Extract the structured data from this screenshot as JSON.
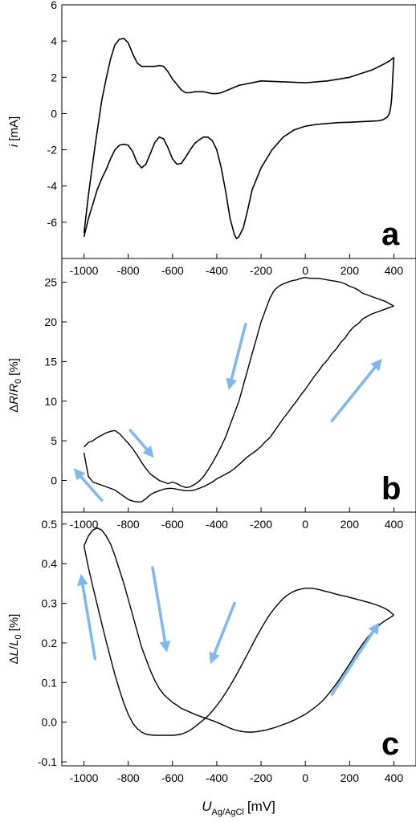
{
  "figure": {
    "xlabel": {
      "main": "U",
      "sub": "Ag/AgCl",
      "unit": "[mV]"
    },
    "arrow_color": "#7db8ee",
    "curve_color": "#000000"
  },
  "chart_data": [
    {
      "type": "line",
      "panel_label": "a",
      "ylabel": {
        "italic": "i",
        "unit": "[mA]"
      },
      "xlim": [
        -1100,
        500
      ],
      "ylim": [
        -8,
        6
      ],
      "xticks": [
        "-1000",
        "-800",
        "-600",
        "-400",
        "-200",
        "0",
        "200",
        "400"
      ],
      "yticks": [
        "6",
        "4",
        "2",
        "0",
        "-2",
        "-4",
        "-6"
      ],
      "grid": false,
      "series": [
        {
          "x": [
            -1000,
            -980,
            -950,
            -920,
            -900,
            -880,
            -860,
            -840,
            -820,
            -800,
            -780,
            -760,
            -740,
            -720,
            -700,
            -680,
            -660,
            -640,
            -620,
            -600,
            -580,
            -560,
            -540,
            -520,
            -500,
            -480,
            -460,
            -440,
            -420,
            -400,
            -380,
            -360,
            -300,
            -200,
            -100,
            0,
            100,
            200,
            300,
            350,
            380,
            400
          ],
          "y": [
            -6.6,
            -4.5,
            -1.8,
            0.7,
            1.9,
            3.0,
            3.8,
            4.1,
            4.15,
            3.9,
            3.3,
            2.8,
            2.6,
            2.6,
            2.6,
            2.6,
            2.65,
            2.6,
            2.3,
            1.9,
            1.6,
            1.3,
            1.15,
            1.15,
            1.2,
            1.2,
            1.2,
            1.15,
            1.1,
            1.1,
            1.15,
            1.25,
            1.55,
            1.8,
            1.75,
            1.7,
            1.8,
            2.0,
            2.4,
            2.7,
            2.9,
            3.1
          ]
        },
        {
          "x": [
            400,
            395,
            390,
            385,
            380,
            370,
            350,
            330,
            300,
            250,
            200,
            150,
            100,
            50,
            0,
            -50,
            -100,
            -150,
            -200,
            -240,
            -260,
            -280,
            -300,
            -310,
            -320,
            -340,
            -360,
            -380,
            -400,
            -420,
            -440,
            -460,
            -480,
            -500,
            -520,
            -540,
            -560,
            -580,
            -600,
            -620,
            -640,
            -660,
            -680,
            -700,
            -720,
            -740,
            -760,
            -780,
            -800,
            -820,
            -840,
            -860,
            -880,
            -900,
            -920,
            -940,
            -960,
            -980,
            -1000
          ],
          "y": [
            3.1,
            2.0,
            0.8,
            0.3,
            0.0,
            -0.2,
            -0.35,
            -0.4,
            -0.42,
            -0.45,
            -0.48,
            -0.5,
            -0.55,
            -0.6,
            -0.7,
            -0.9,
            -1.3,
            -2.0,
            -3.0,
            -4.2,
            -5.3,
            -6.3,
            -6.8,
            -6.9,
            -6.7,
            -5.8,
            -4.3,
            -3.0,
            -2.0,
            -1.5,
            -1.3,
            -1.3,
            -1.45,
            -1.65,
            -2.0,
            -2.4,
            -2.75,
            -2.8,
            -2.5,
            -1.9,
            -1.4,
            -1.3,
            -1.6,
            -2.2,
            -2.8,
            -3.0,
            -2.7,
            -2.1,
            -1.75,
            -1.7,
            -1.75,
            -2.0,
            -2.5,
            -3.1,
            -3.6,
            -4.2,
            -5.0,
            -5.8,
            -6.8
          ]
        }
      ]
    },
    {
      "type": "line",
      "panel_label": "b",
      "ylabel": {
        "prefix": "Δ",
        "italic": "R",
        "slash": "/",
        "italic2": "R",
        "sub": "0",
        "unit": "[%]"
      },
      "xlim": [
        -1100,
        500
      ],
      "ylim": [
        -4,
        28
      ],
      "xticks": [
        "-1000",
        "-800",
        "-600",
        "-400",
        "-200",
        "0",
        "200",
        "400"
      ],
      "yticks": [
        "25",
        "20",
        "15",
        "10",
        "5",
        "0"
      ],
      "grid": false,
      "series": [
        {
          "x": [
            -1000,
            -990,
            -980,
            -960,
            -940,
            -920,
            -900,
            -880,
            -860,
            -840,
            -820,
            -800,
            -780,
            -760,
            -740,
            -720,
            -700,
            -680,
            -660,
            -640,
            -620,
            -600,
            -580,
            -560,
            -540,
            -520,
            -500,
            -480,
            -460,
            -440,
            -420,
            -400,
            -380,
            -360,
            -340,
            -320,
            -300,
            -280,
            -260,
            -240,
            -220,
            -200,
            -180,
            -160,
            -140,
            -120,
            -100,
            -80,
            -60,
            -40,
            -20,
            0,
            20,
            40,
            60,
            80,
            100,
            120,
            140,
            160,
            180,
            200,
            220,
            240,
            260,
            280,
            300,
            320,
            340,
            360,
            380,
            400
          ],
          "y": [
            3.5,
            2.0,
            0.5,
            -0.2,
            -0.4,
            -0.6,
            -0.8,
            -1.0,
            -1.2,
            -1.6,
            -2.0,
            -2.4,
            -2.6,
            -2.7,
            -2.7,
            -2.3,
            -1.8,
            -1.5,
            -1.3,
            -1.1,
            -1.0,
            -1.0,
            -1.1,
            -1.2,
            -1.3,
            -1.3,
            -1.2,
            -1.0,
            -0.8,
            -0.5,
            -0.2,
            0.2,
            0.5,
            0.8,
            1.1,
            1.5,
            2.0,
            2.5,
            3.0,
            3.4,
            3.8,
            4.3,
            4.9,
            5.4,
            6.2,
            7.0,
            7.8,
            8.5,
            9.3,
            10.0,
            10.8,
            11.5,
            12.3,
            13.1,
            13.8,
            14.6,
            15.2,
            16.0,
            16.6,
            17.4,
            18.0,
            18.8,
            19.4,
            19.8,
            20.4,
            20.7,
            21.0,
            21.2,
            21.4,
            21.6,
            21.8,
            22.0
          ]
        },
        {
          "x": [
            400,
            380,
            360,
            340,
            320,
            300,
            280,
            260,
            240,
            220,
            200,
            180,
            160,
            140,
            120,
            100,
            80,
            60,
            40,
            20,
            0,
            -20,
            -40,
            -60,
            -80,
            -100,
            -120,
            -140,
            -160,
            -180,
            -200,
            -220,
            -240,
            -260,
            -280,
            -300,
            -320,
            -340,
            -360,
            -380,
            -400,
            -420,
            -440,
            -460,
            -480,
            -500,
            -520,
            -540,
            -560,
            -580,
            -600,
            -620,
            -640,
            -660,
            -680,
            -700,
            -720,
            -740,
            -760,
            -780,
            -800,
            -820,
            -840,
            -860,
            -880,
            -900,
            -920,
            -940,
            -960,
            -980,
            -990,
            -1000
          ],
          "y": [
            22.0,
            22.3,
            22.6,
            22.8,
            23.0,
            23.2,
            23.4,
            23.6,
            24.0,
            24.3,
            24.5,
            24.8,
            25.0,
            25.1,
            25.2,
            25.3,
            25.4,
            25.5,
            25.5,
            25.5,
            25.6,
            25.5,
            25.3,
            25.2,
            25.0,
            24.8,
            24.5,
            24.0,
            23.0,
            21.5,
            20.0,
            18.0,
            16.0,
            14.0,
            12.0,
            10.0,
            8.5,
            7.0,
            5.5,
            4.3,
            3.2,
            2.2,
            1.3,
            0.5,
            -0.1,
            -0.5,
            -0.8,
            -0.9,
            -0.7,
            -0.4,
            -0.2,
            -0.4,
            -0.2,
            0.0,
            0.4,
            0.8,
            1.5,
            2.3,
            3.2,
            4.0,
            4.7,
            5.3,
            5.9,
            6.3,
            6.2,
            6.0,
            5.7,
            5.4,
            5.0,
            4.8,
            4.5,
            4.2
          ]
        }
      ],
      "arrows": [
        {
          "from": [
            -270,
            19.7
          ],
          "to": [
            -340,
            12.1
          ]
        },
        {
          "from": [
            120,
            7.5
          ],
          "to": [
            330,
            14.8
          ]
        },
        {
          "from": [
            -790,
            6.3
          ],
          "to": [
            -700,
            3.4
          ]
        },
        {
          "from": [
            -920,
            -2.5
          ],
          "to": [
            -1030,
            1.0
          ]
        }
      ]
    },
    {
      "type": "line",
      "panel_label": "c",
      "ylabel": {
        "prefix": "Δ",
        "italic": "L",
        "slash": "/",
        "italic2": "L",
        "sub": "0",
        "unit": "[%]"
      },
      "xlim": [
        -1100,
        500
      ],
      "ylim": [
        -0.11,
        0.53
      ],
      "xticks": [
        "-1000",
        "-800",
        "-600",
        "-400",
        "-200",
        "0",
        "200",
        "400"
      ],
      "yticks": [
        "0.5",
        "0.4",
        "0.3",
        "0.2",
        "0.1",
        "0.0",
        "-0.1"
      ],
      "grid": false,
      "series": [
        {
          "x": [
            -1000,
            -980,
            -960,
            -940,
            -920,
            -900,
            -880,
            -860,
            -840,
            -820,
            -800,
            -780,
            -760,
            -740,
            -720,
            -700,
            -680,
            -660,
            -640,
            -620,
            -600,
            -580,
            -560,
            -540,
            -520,
            -500,
            -480,
            -460,
            -440,
            -420,
            -400,
            -380,
            -360,
            -340,
            -320,
            -300,
            -280,
            -260,
            -240,
            -220,
            -200,
            -180,
            -160,
            -140,
            -120,
            -100,
            -80,
            -60,
            -40,
            -20,
            0,
            20,
            40,
            60,
            80,
            100,
            120,
            140,
            160,
            180,
            200,
            220,
            240,
            260,
            280,
            300,
            320,
            340,
            360,
            380,
            400
          ],
          "y": [
            0.445,
            0.47,
            0.485,
            0.49,
            0.485,
            0.47,
            0.45,
            0.42,
            0.385,
            0.35,
            0.31,
            0.27,
            0.23,
            0.19,
            0.16,
            0.13,
            0.105,
            0.085,
            0.07,
            0.06,
            0.05,
            0.043,
            0.035,
            0.03,
            0.025,
            0.02,
            0.016,
            0.012,
            0.008,
            0.004,
            0.0,
            -0.005,
            -0.01,
            -0.015,
            -0.019,
            -0.022,
            -0.024,
            -0.025,
            -0.025,
            -0.024,
            -0.022,
            -0.02,
            -0.017,
            -0.014,
            -0.01,
            -0.006,
            -0.002,
            0.003,
            0.008,
            0.014,
            0.02,
            0.028,
            0.036,
            0.045,
            0.055,
            0.068,
            0.082,
            0.097,
            0.113,
            0.13,
            0.147,
            0.165,
            0.182,
            0.198,
            0.213,
            0.226,
            0.238,
            0.248,
            0.256,
            0.263,
            0.27
          ]
        },
        {
          "x": [
            400,
            380,
            360,
            340,
            320,
            300,
            280,
            260,
            240,
            220,
            200,
            180,
            160,
            140,
            120,
            100,
            80,
            60,
            40,
            20,
            0,
            -20,
            -40,
            -60,
            -80,
            -100,
            -120,
            -140,
            -160,
            -180,
            -200,
            -220,
            -240,
            -260,
            -280,
            -300,
            -320,
            -340,
            -360,
            -380,
            -400,
            -420,
            -440,
            -460,
            -480,
            -500,
            -520,
            -540,
            -560,
            -580,
            -600,
            -620,
            -640,
            -660,
            -680,
            -700,
            -720,
            -740,
            -760,
            -780,
            -800,
            -820,
            -840,
            -860,
            -880,
            -900,
            -920,
            -940,
            -960,
            -980,
            -1000
          ],
          "y": [
            0.27,
            0.28,
            0.287,
            0.292,
            0.296,
            0.3,
            0.303,
            0.306,
            0.309,
            0.312,
            0.315,
            0.318,
            0.32,
            0.323,
            0.326,
            0.329,
            0.332,
            0.335,
            0.337,
            0.338,
            0.338,
            0.336,
            0.333,
            0.328,
            0.321,
            0.312,
            0.3,
            0.287,
            0.272,
            0.255,
            0.236,
            0.216,
            0.195,
            0.173,
            0.152,
            0.131,
            0.111,
            0.092,
            0.074,
            0.057,
            0.042,
            0.028,
            0.016,
            0.006,
            -0.003,
            -0.012,
            -0.02,
            -0.026,
            -0.03,
            -0.032,
            -0.033,
            -0.033,
            -0.033,
            -0.033,
            -0.033,
            -0.032,
            -0.03,
            -0.025,
            -0.016,
            -0.002,
            0.02,
            0.048,
            0.082,
            0.12,
            0.162,
            0.205,
            0.25,
            0.296,
            0.342,
            0.39,
            0.445
          ]
        }
      ],
      "arrows": [
        {
          "from": [
            -690,
            0.39
          ],
          "to": [
            -630,
            0.19
          ]
        },
        {
          "from": [
            -320,
            0.3
          ],
          "to": [
            -420,
            0.16
          ]
        },
        {
          "from": [
            120,
            0.07
          ],
          "to": [
            320,
            0.24
          ]
        },
        {
          "from": [
            -950,
            0.16
          ],
          "to": [
            -1010,
            0.36
          ]
        }
      ]
    }
  ]
}
